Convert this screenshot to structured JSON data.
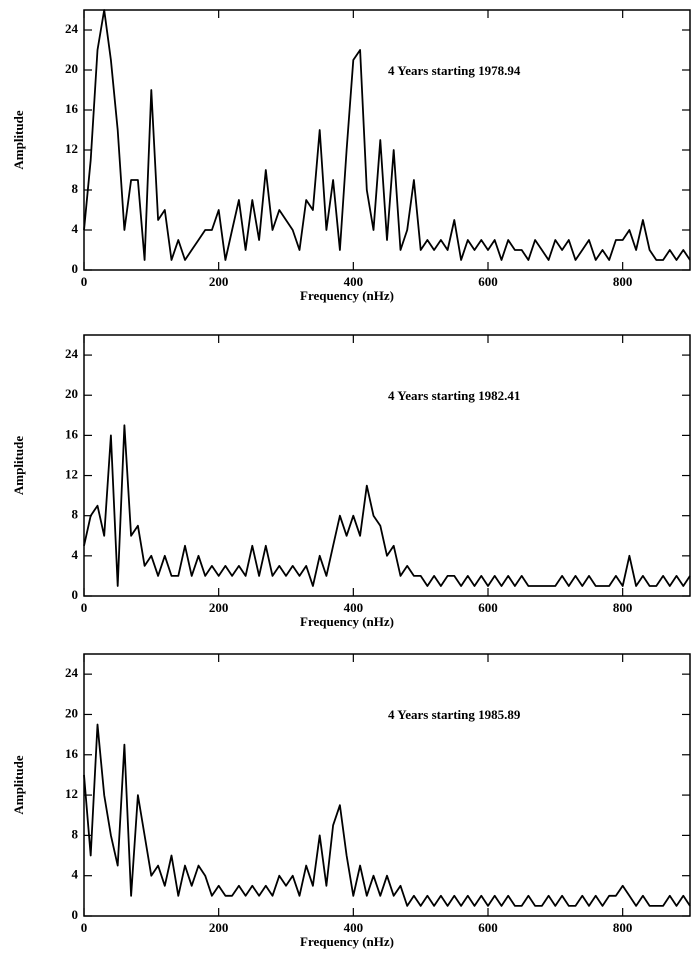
{
  "chart_data": [
    {
      "type": "line",
      "annotation": "4 Years starting 1978.94",
      "x_label": "Frequency (nHz)",
      "y_label": "Amplitude",
      "xlim": [
        0,
        900
      ],
      "ylim": [
        0,
        26
      ],
      "xticks": [
        0,
        200,
        400,
        600,
        800
      ],
      "yticks": [
        0,
        4,
        8,
        12,
        16,
        20,
        24
      ],
      "series": [
        {
          "color": "#000000",
          "x": [
            0,
            10,
            20,
            30,
            40,
            50,
            60,
            70,
            80,
            90,
            100,
            110,
            120,
            130,
            140,
            150,
            160,
            170,
            180,
            190,
            200,
            210,
            220,
            230,
            240,
            250,
            260,
            270,
            280,
            290,
            300,
            310,
            320,
            330,
            340,
            350,
            360,
            370,
            380,
            390,
            400,
            410,
            420,
            430,
            440,
            450,
            460,
            470,
            480,
            490,
            500,
            510,
            520,
            530,
            540,
            550,
            560,
            570,
            580,
            590,
            600,
            610,
            620,
            630,
            640,
            650,
            660,
            670,
            680,
            690,
            700,
            710,
            720,
            730,
            740,
            750,
            760,
            770,
            780,
            790,
            800,
            810,
            820,
            830,
            840,
            850,
            860,
            870,
            880,
            890,
            900
          ],
          "values": [
            4,
            11,
            22,
            26,
            21,
            14,
            4,
            9,
            9,
            1,
            18,
            5,
            6,
            1,
            3,
            1,
            2,
            3,
            4,
            4,
            6,
            1,
            4,
            7,
            2,
            7,
            3,
            10,
            4,
            6,
            5,
            4,
            2,
            7,
            6,
            14,
            4,
            9,
            2,
            12,
            21,
            22,
            8,
            4,
            13,
            3,
            12,
            2,
            4,
            9,
            2,
            3,
            2,
            3,
            2,
            5,
            1,
            3,
            2,
            3,
            2,
            3,
            1,
            3,
            2,
            2,
            1,
            3,
            2,
            1,
            3,
            2,
            3,
            1,
            2,
            3,
            1,
            2,
            1,
            3,
            3,
            4,
            2,
            5,
            2,
            1,
            1,
            2,
            1,
            2,
            1
          ]
        }
      ]
    },
    {
      "type": "line",
      "annotation": "4 Years starting 1982.41",
      "x_label": "Frequency (nHz)",
      "y_label": "Amplitude",
      "xlim": [
        0,
        900
      ],
      "ylim": [
        0,
        26
      ],
      "xticks": [
        0,
        200,
        400,
        600,
        800
      ],
      "yticks": [
        0,
        4,
        8,
        12,
        16,
        20,
        24
      ],
      "series": [
        {
          "color": "#000000",
          "x": [
            0,
            10,
            20,
            30,
            40,
            50,
            60,
            70,
            80,
            90,
            100,
            110,
            120,
            130,
            140,
            150,
            160,
            170,
            180,
            190,
            200,
            210,
            220,
            230,
            240,
            250,
            260,
            270,
            280,
            290,
            300,
            310,
            320,
            330,
            340,
            350,
            360,
            370,
            380,
            390,
            400,
            410,
            420,
            430,
            440,
            450,
            460,
            470,
            480,
            490,
            500,
            510,
            520,
            530,
            540,
            550,
            560,
            570,
            580,
            590,
            600,
            610,
            620,
            630,
            640,
            650,
            660,
            670,
            680,
            690,
            700,
            710,
            720,
            730,
            740,
            750,
            760,
            770,
            780,
            790,
            800,
            810,
            820,
            830,
            840,
            850,
            860,
            870,
            880,
            890,
            900
          ],
          "values": [
            5,
            8,
            9,
            6,
            16,
            1,
            17,
            6,
            7,
            3,
            4,
            2,
            4,
            2,
            2,
            5,
            2,
            4,
            2,
            3,
            2,
            3,
            2,
            3,
            2,
            5,
            2,
            5,
            2,
            3,
            2,
            3,
            2,
            3,
            1,
            4,
            2,
            5,
            8,
            6,
            8,
            6,
            11,
            8,
            7,
            4,
            5,
            2,
            3,
            2,
            2,
            1,
            2,
            1,
            2,
            2,
            1,
            2,
            1,
            2,
            1,
            2,
            1,
            2,
            1,
            2,
            1,
            1,
            1,
            1,
            1,
            2,
            1,
            2,
            1,
            2,
            1,
            1,
            1,
            2,
            1,
            4,
            1,
            2,
            1,
            1,
            2,
            1,
            2,
            1,
            2
          ]
        }
      ]
    },
    {
      "type": "line",
      "annotation": "4 Years starting 1985.89",
      "x_label": "Frequency (nHz)",
      "y_label": "Amplitude",
      "xlim": [
        0,
        900
      ],
      "ylim": [
        0,
        26
      ],
      "xticks": [
        0,
        200,
        400,
        600,
        800
      ],
      "yticks": [
        0,
        4,
        8,
        12,
        16,
        20,
        24
      ],
      "series": [
        {
          "color": "#000000",
          "x": [
            0,
            10,
            20,
            30,
            40,
            50,
            60,
            70,
            80,
            90,
            100,
            110,
            120,
            130,
            140,
            150,
            160,
            170,
            180,
            190,
            200,
            210,
            220,
            230,
            240,
            250,
            260,
            270,
            280,
            290,
            300,
            310,
            320,
            330,
            340,
            350,
            360,
            370,
            380,
            390,
            400,
            410,
            420,
            430,
            440,
            450,
            460,
            470,
            480,
            490,
            500,
            510,
            520,
            530,
            540,
            550,
            560,
            570,
            580,
            590,
            600,
            610,
            620,
            630,
            640,
            650,
            660,
            670,
            680,
            690,
            700,
            710,
            720,
            730,
            740,
            750,
            760,
            770,
            780,
            790,
            800,
            810,
            820,
            830,
            840,
            850,
            860,
            870,
            880,
            890,
            900
          ],
          "values": [
            14,
            6,
            19,
            12,
            8,
            5,
            17,
            2,
            12,
            8,
            4,
            5,
            3,
            6,
            2,
            5,
            3,
            5,
            4,
            2,
            3,
            2,
            2,
            3,
            2,
            3,
            2,
            3,
            2,
            4,
            3,
            4,
            2,
            5,
            3,
            8,
            3,
            9,
            11,
            6,
            2,
            5,
            2,
            4,
            2,
            4,
            2,
            3,
            1,
            2,
            1,
            2,
            1,
            2,
            1,
            2,
            1,
            2,
            1,
            2,
            1,
            2,
            1,
            2,
            1,
            1,
            2,
            1,
            1,
            2,
            1,
            2,
            1,
            1,
            2,
            1,
            2,
            1,
            2,
            2,
            3,
            2,
            1,
            2,
            1,
            1,
            1,
            2,
            1,
            2,
            1
          ]
        }
      ]
    }
  ]
}
